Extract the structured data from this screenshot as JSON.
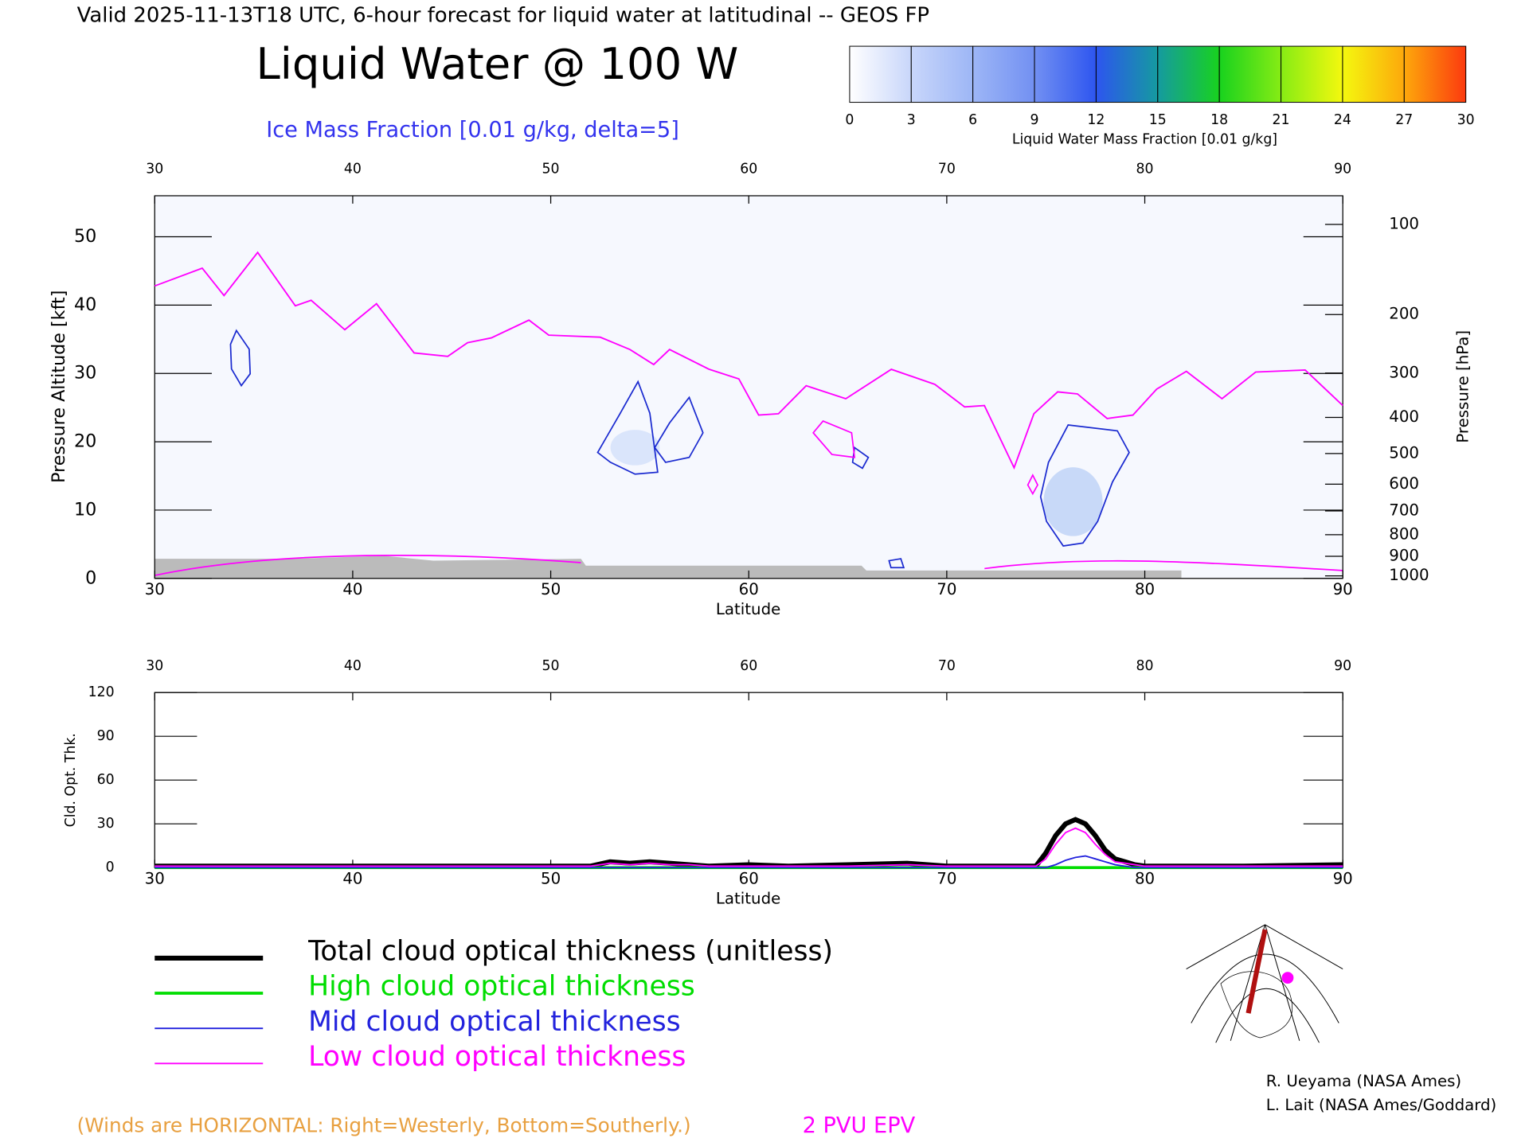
{
  "header": "Valid 2025-11-13T18 UTC, 6-hour forecast for liquid water at latitudinal -- GEOS FP",
  "chart_data": [
    {
      "type": "colorbar",
      "label": "Liquid Water Mass Fraction [0.01 g/kg]",
      "lim": [
        0,
        30
      ],
      "ticks": [
        0,
        3,
        6,
        9,
        12,
        15,
        18,
        21,
        24,
        27,
        30
      ],
      "colors": [
        "#ffffff",
        "#c8d6fa",
        "#9db6f6",
        "#7290f2",
        "#2d55ef",
        "#159aa0",
        "#18d21e",
        "#86ec14",
        "#f4f80e",
        "#fda80c",
        "#fc3a0e"
      ]
    },
    {
      "type": "line",
      "title": "Liquid Water @ 100 W",
      "subtitle": "Ice Mass Fraction [0.01 g/kg, delta=5]",
      "xlabel": "Latitude",
      "ylabel": "Pressure Altitude [kft]",
      "y2label": "Pressure [hPa]",
      "xlim": [
        30,
        90
      ],
      "xticks": [
        30,
        40,
        50,
        60,
        70,
        80,
        90
      ],
      "ylim": [
        0,
        56
      ],
      "yticks": [
        0,
        10,
        20,
        30,
        40,
        50
      ],
      "y2scale": "pressure-altitude",
      "y2ticks": [
        100,
        200,
        300,
        400,
        500,
        600,
        700,
        800,
        900,
        1000
      ],
      "series": [
        {
          "name": "2 PVU EPV",
          "color": "#ff00ff",
          "x": [
            30,
            32.4,
            33.5,
            35.2,
            37.1,
            37.9,
            39.6,
            41.2,
            43.1,
            44.8,
            45.8,
            47,
            48.9,
            49.9,
            52.5,
            54,
            55.2,
            56,
            58,
            59.5,
            60.5,
            61.5,
            62.9,
            64.9,
            67.2,
            69.4,
            70.9,
            71.9,
            73.4,
            74.4,
            75.6,
            76.6,
            78.1,
            79.4,
            80.6,
            82.1,
            83.9,
            85.6,
            88.1,
            90
          ],
          "values": [
            42.8,
            45.4,
            41.4,
            47.7,
            39.9,
            40.7,
            36.4,
            40.2,
            33,
            32.5,
            34.5,
            35.2,
            37.8,
            35.6,
            35.3,
            33.5,
            31.3,
            33.5,
            30.6,
            29.2,
            23.9,
            24.1,
            28.2,
            26.3,
            30.6,
            28.4,
            25.1,
            25.3,
            16.2,
            24.1,
            27.3,
            27,
            23.4,
            23.9,
            27.7,
            30.3,
            26.3,
            30.2,
            30.5,
            25.3
          ]
        }
      ]
    },
    {
      "type": "line",
      "xlabel": "Latitude",
      "ylabel": "Cld. Opt. Thk.",
      "xlim": [
        30,
        90
      ],
      "xticks": [
        30,
        40,
        50,
        60,
        70,
        80,
        90
      ],
      "ylim": [
        0,
        120
      ],
      "yticks": [
        0,
        30,
        60,
        90,
        120
      ],
      "x": [
        30,
        40,
        50,
        52,
        53,
        54,
        55,
        56,
        57,
        58,
        60,
        62,
        65,
        68,
        70,
        74.5,
        75,
        75.5,
        76,
        76.5,
        77,
        77.5,
        78,
        78.5,
        79,
        79.5,
        80,
        85,
        90
      ],
      "series": [
        {
          "name": "Total cloud optical thickness (unitless)",
          "color": "#000000",
          "width": 5,
          "values": [
            1,
            1,
            1,
            1,
            4,
            3,
            4,
            3,
            2,
            1,
            2,
            1,
            2,
            3,
            1,
            1,
            10,
            22,
            30,
            33,
            30,
            22,
            12,
            6,
            4,
            2,
            1,
            1,
            2
          ]
        },
        {
          "name": "High cloud optical thickness",
          "color": "#00dd00",
          "width": 3,
          "values": [
            0,
            0,
            0,
            0,
            0,
            0,
            0,
            0,
            0,
            0,
            0,
            0,
            0,
            0,
            0,
            0,
            0,
            0,
            0,
            0,
            0,
            0,
            0,
            0,
            0,
            0,
            0,
            0,
            0
          ]
        },
        {
          "name": "Mid cloud optical thickness",
          "color": "#2222dd",
          "width": 1.5,
          "values": [
            0,
            0,
            0,
            0,
            0,
            0,
            0,
            0,
            0,
            0,
            0,
            0,
            0,
            0,
            0,
            0,
            0,
            2,
            5,
            7,
            8,
            6,
            4,
            2,
            1,
            0,
            0,
            0,
            0
          ]
        },
        {
          "name": "Low cloud optical thickness",
          "color": "#ff00ff",
          "width": 1.5,
          "values": [
            1,
            1,
            1,
            1,
            3,
            2,
            3,
            2,
            2,
            1,
            1,
            1,
            1,
            2,
            1,
            1,
            6,
            16,
            24,
            27,
            24,
            16,
            9,
            4,
            3,
            2,
            1,
            1,
            1
          ]
        }
      ]
    }
  ],
  "footer": {
    "winds": "(Winds are HORIZONTAL: Right=Westerly, Bottom=Southerly.)",
    "credits": [
      "R. Ueyama (NASA Ames)",
      "L. Lait (NASA Ames/Goddard)"
    ]
  }
}
